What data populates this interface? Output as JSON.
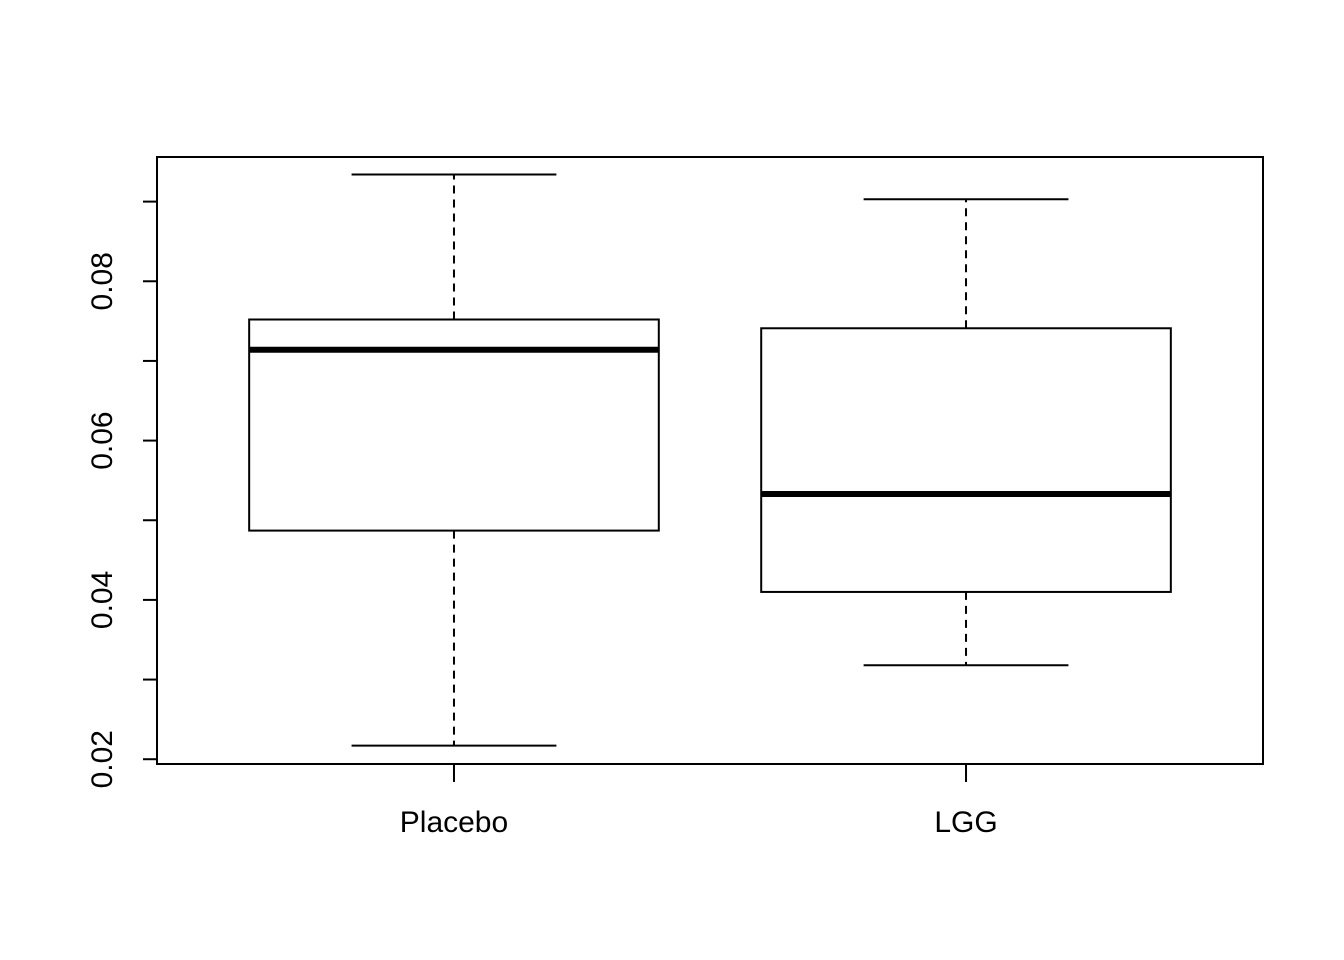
{
  "chart_data": {
    "type": "box",
    "title": "",
    "xlabel": "",
    "ylabel": "",
    "ylim": [
      0.0194,
      0.0956
    ],
    "yticks": [
      0.02,
      0.03,
      0.04,
      0.05,
      0.06,
      0.07,
      0.08,
      0.09
    ],
    "ytick_labels": [
      "0.02",
      "",
      "0.04",
      "",
      "0.06",
      "",
      "0.08",
      ""
    ],
    "categories": [
      "Placebo",
      "LGG"
    ],
    "boxes": [
      {
        "category": "Placebo",
        "whisker_low": 0.0217,
        "q1": 0.0487,
        "median": 0.0714,
        "q3": 0.0752,
        "whisker_high": 0.0934
      },
      {
        "category": "LGG",
        "whisker_low": 0.0318,
        "q1": 0.041,
        "median": 0.0533,
        "q3": 0.0741,
        "whisker_high": 0.0903
      }
    ],
    "grid": false,
    "colors": {
      "stroke": "#000000",
      "fill": "#ffffff"
    }
  }
}
